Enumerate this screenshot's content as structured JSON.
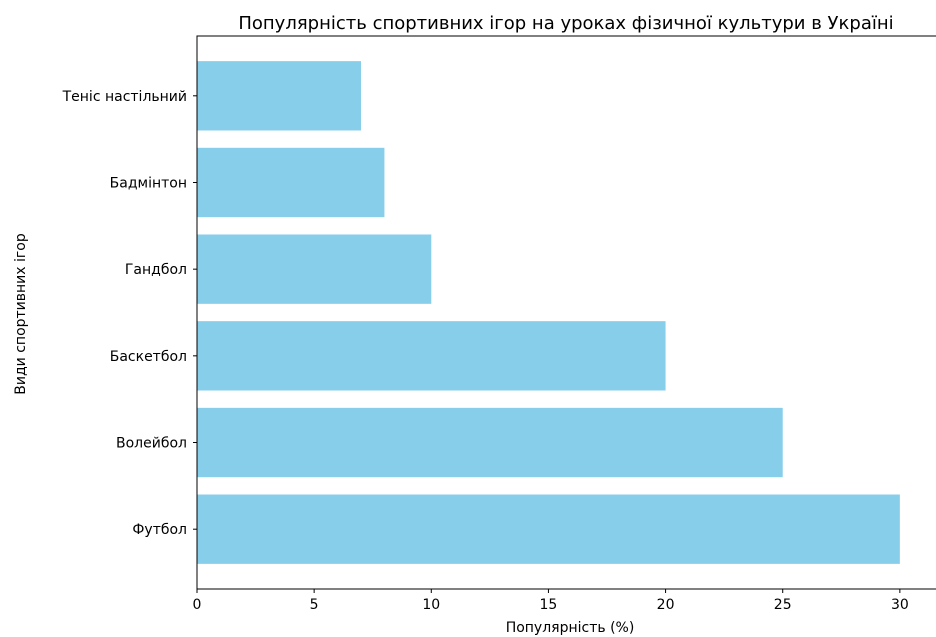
{
  "chart_data": {
    "type": "bar",
    "orientation": "horizontal",
    "title": "Популярність спортивних ігор на уроках фізичної культури в Україні",
    "xlabel": "Популярність (%)",
    "ylabel": "Види спортивних ігор",
    "categories": [
      "Футбол",
      "Волейбол",
      "Баскетбол",
      "Гандбол",
      "Бадмінтон",
      "Теніс настільний"
    ],
    "values": [
      30,
      25,
      20,
      10,
      8,
      7
    ],
    "xlim": [
      0,
      31.5
    ],
    "xticks": [
      0,
      5,
      10,
      15,
      20,
      25,
      30
    ],
    "grid": false,
    "bar_color": "#87ceeb"
  }
}
